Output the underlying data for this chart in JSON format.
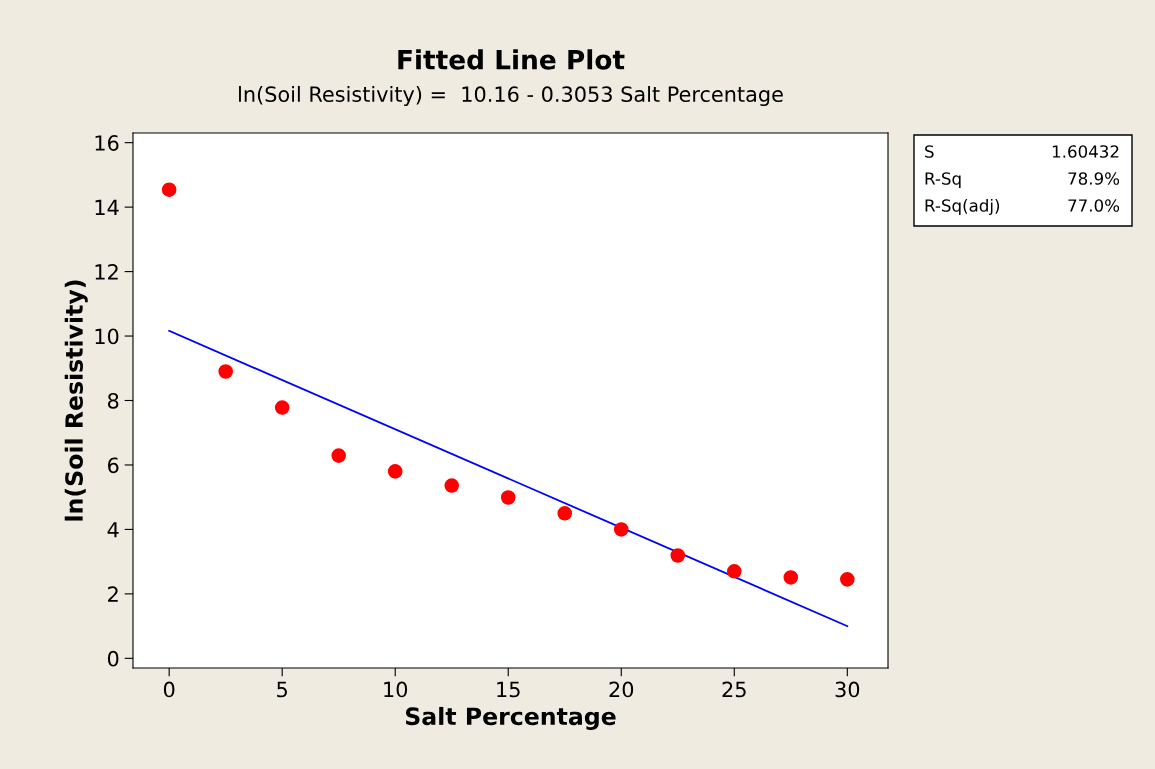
{
  "chart_data": {
    "type": "scatter",
    "title": "Fitted Line Plot",
    "subtitle": "ln(Soil Resistivity) =  10.16 - 0.3053 Salt Percentage",
    "xlabel": "Salt Percentage",
    "ylabel": "ln(Soil Resistivity)",
    "x": [
      0,
      2.5,
      5,
      7.5,
      10,
      12.5,
      15,
      17.5,
      20,
      22.5,
      25,
      27.5,
      30
    ],
    "series": [
      {
        "color": "#ff0000",
        "marker": "circle",
        "values": [
          14.54,
          8.9,
          7.78,
          6.29,
          5.8,
          5.36,
          4.99,
          4.5,
          4.0,
          3.19,
          2.7,
          2.51,
          2.45
        ]
      },
      {
        "type": "line",
        "color": "#0000ff",
        "x": [
          0,
          30
        ],
        "values": [
          10.16,
          1.0
        ]
      }
    ],
    "xlim": [
      -1.6,
      31.8
    ],
    "ylim": [
      -0.3,
      16.3
    ],
    "xticks": [
      0,
      5,
      10,
      15,
      20,
      25,
      30
    ],
    "yticks": [
      0,
      2,
      4,
      6,
      8,
      10,
      12,
      14,
      16
    ],
    "grid": false,
    "legend": false,
    "annotations": [
      "S",
      "1.60432",
      "R-Sq",
      "78.9%",
      "R-Sq(adj)",
      "77.0%"
    ]
  }
}
